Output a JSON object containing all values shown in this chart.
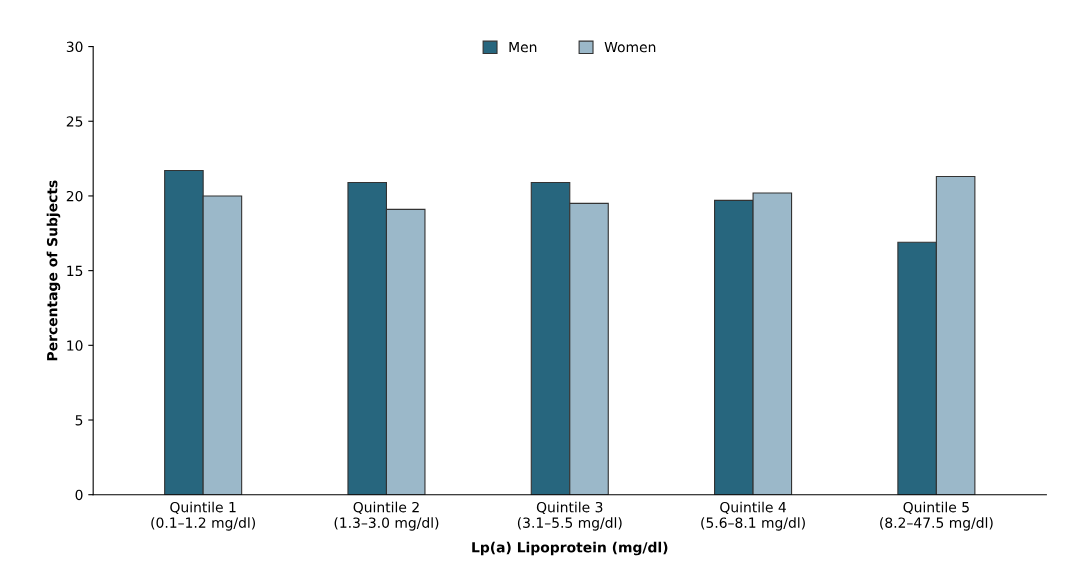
{
  "chart_data": {
    "type": "bar",
    "xlabel": "Lp(a) Lipoprotein (mg/dl)",
    "ylabel": "Percentage of Subjects",
    "categories": [
      "Quintile 1\n(0.1–1.2 mg/dl)",
      "Quintile 2\n(1.3–3.0 mg/dl)",
      "Quintile 3\n(3.1–5.5 mg/dl)",
      "Quintile 4\n(5.6–8.1 mg/dl)",
      "Quintile 5\n(8.2–47.5 mg/dl)"
    ],
    "series": [
      {
        "name": "Men",
        "color": "#27667e",
        "values": [
          21.7,
          20.9,
          20.9,
          19.7,
          16.9
        ]
      },
      {
        "name": "Women",
        "color": "#9bb8c9",
        "values": [
          20.0,
          19.1,
          19.5,
          20.2,
          21.3
        ]
      }
    ],
    "ylim": [
      0,
      30
    ],
    "yticks": [
      0,
      5,
      10,
      15,
      20,
      25,
      30
    ],
    "grid": false,
    "legend": "top"
  }
}
